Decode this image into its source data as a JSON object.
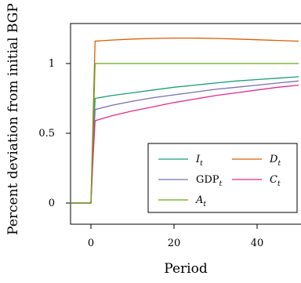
{
  "chart_data": {
    "type": "line",
    "xlabel": "Period",
    "ylabel": "Percent deviation from initial BGP",
    "xlim": [
      -5,
      50
    ],
    "ylim": [
      -0.1,
      1.33
    ],
    "x_ticks": [
      0,
      20,
      40
    ],
    "x_tick_labels": [
      "0",
      "20",
      "40"
    ],
    "y_ticks": [
      0,
      0.5,
      1
    ],
    "y_tick_labels": [
      "0",
      "0.5",
      "1"
    ],
    "grid": false,
    "legend_position": "bottom-right",
    "x": [
      -5,
      0,
      0.5,
      1,
      5,
      10,
      15,
      20,
      25,
      30,
      35,
      40,
      45,
      50
    ],
    "series": [
      {
        "name": "I",
        "subscript": "t",
        "color": "#1b9e77",
        "values": [
          0,
          0,
          0.4,
          0.75,
          0.77,
          0.79,
          0.81,
          0.83,
          0.845,
          0.86,
          0.875,
          0.885,
          0.895,
          0.905
        ]
      },
      {
        "name": "D",
        "subscript": "t",
        "color": "#d95f02",
        "values": [
          0,
          0,
          0.6,
          1.16,
          1.168,
          1.175,
          1.18,
          1.182,
          1.182,
          1.18,
          1.175,
          1.17,
          1.165,
          1.16
        ]
      },
      {
        "name": "GDP",
        "subscript": "t",
        "color": "#7570b3",
        "values": [
          0,
          0,
          0.36,
          0.67,
          0.7,
          0.73,
          0.755,
          0.775,
          0.795,
          0.815,
          0.83,
          0.845,
          0.86,
          0.875
        ]
      },
      {
        "name": "C",
        "subscript": "t",
        "color": "#e7298a",
        "values": [
          0,
          0,
          0.32,
          0.59,
          0.625,
          0.66,
          0.69,
          0.72,
          0.745,
          0.77,
          0.79,
          0.81,
          0.83,
          0.845
        ]
      },
      {
        "name": "A",
        "subscript": "t",
        "color": "#66a61e",
        "values": [
          0,
          0,
          0.5,
          1.0,
          1.0,
          1.0,
          1.0,
          1.0,
          1.0,
          1.0,
          1.0,
          1.0,
          1.0,
          1.0
        ]
      }
    ]
  }
}
